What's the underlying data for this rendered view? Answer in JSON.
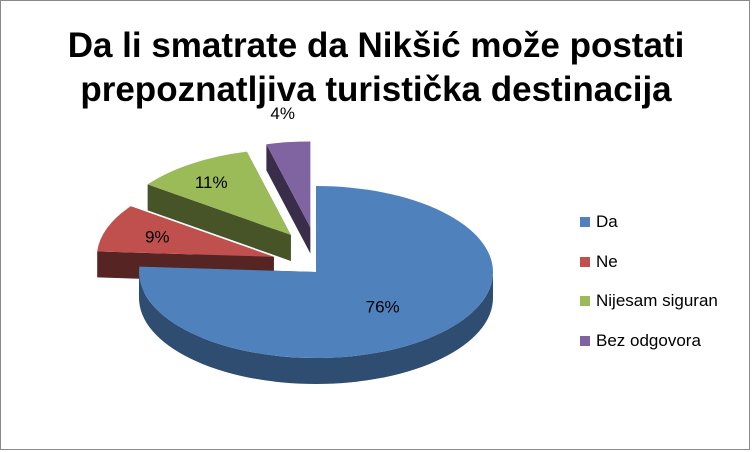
{
  "chart_data": {
    "type": "pie",
    "title_line1": "Da li smatrate da Nikšić može postati",
    "title_line2": "prepoznatljiva turistička destinacija",
    "categories": [
      "Da",
      "Ne",
      "Nijesam siguran",
      "Bez odgovora"
    ],
    "values": [
      76,
      9,
      11,
      4
    ],
    "labels": [
      "76%",
      "9%",
      "11%",
      "4%"
    ],
    "colors": [
      "#4f81bd",
      "#c0504d",
      "#9bbb59",
      "#8064a2"
    ],
    "legend_position": "right",
    "style": "3d-exploded"
  }
}
